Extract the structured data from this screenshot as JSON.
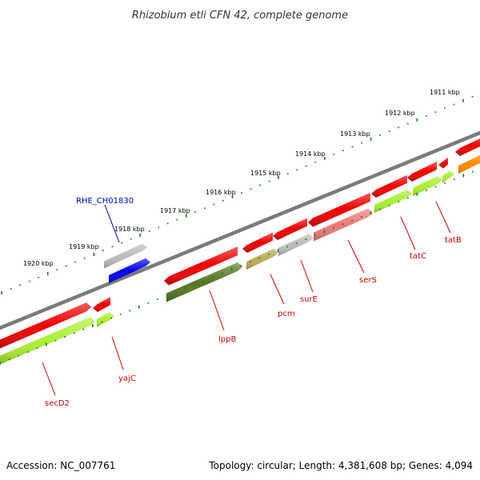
{
  "title": "Rhizobium etli CFN 42, complete genome",
  "accession": "Accession: NC_007761",
  "summary": "Topology: circular; Length: 4,381,608 bp; Genes: 4,094",
  "colors": {
    "backbone": "#7a7a7a",
    "tick": "#1a7a1a",
    "label_red": "#cc0000",
    "label_blue": "#0000aa",
    "gene_red": "#ee0000",
    "gene_lime": "#aaee33",
    "gene_darkgreen": "#557722",
    "gene_olive": "#bbaa55",
    "gene_gray": "#bbbbbb",
    "gene_salmon": "#ee7777",
    "gene_blue": "#0000ee",
    "gene_orange": "#ff8800"
  },
  "scale_labels": [
    "1920 kbp",
    "1919 kbp",
    "1918 kbp",
    "1917 kbp",
    "1916 kbp",
    "1915 kbp",
    "1914 kbp",
    "1913 kbp",
    "1912 kbp",
    "1911 kbp"
  ],
  "genes": [
    {
      "id": "secD2",
      "label": "secD2"
    },
    {
      "id": "yajC",
      "label": "yajC"
    },
    {
      "id": "lppB",
      "label": "lppB"
    },
    {
      "id": "pcm",
      "label": "pcm"
    },
    {
      "id": "surE",
      "label": "surE"
    },
    {
      "id": "serS",
      "label": "serS"
    },
    {
      "id": "tatC",
      "label": "tatC"
    },
    {
      "id": "tatB",
      "label": "tatB"
    },
    {
      "id": "RHE_CH01830",
      "label": "RHE_CH01830"
    }
  ]
}
